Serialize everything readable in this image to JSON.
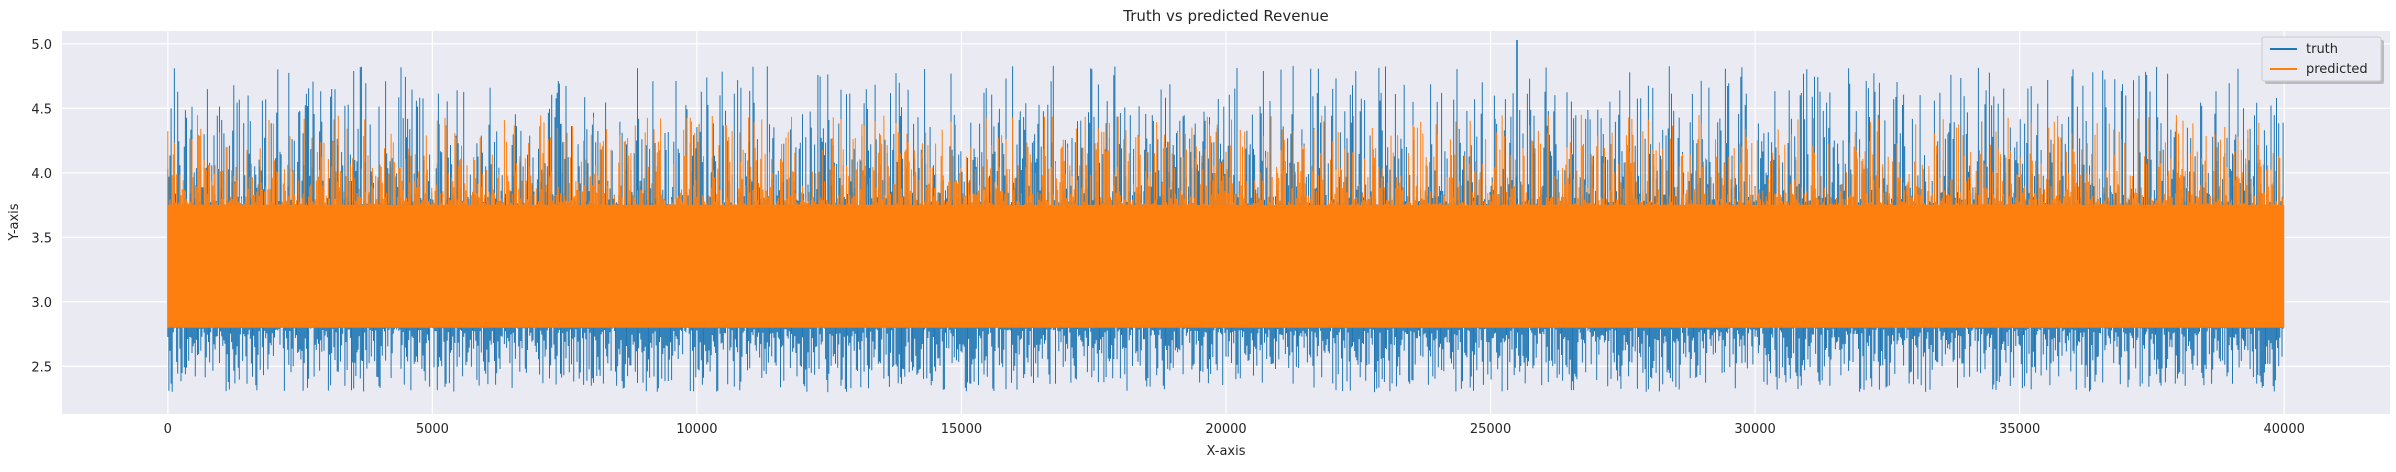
{
  "chart_data": {
    "type": "line",
    "title": "Truth vs predicted Revenue",
    "xlabel": "X-axis",
    "ylabel": "Y-axis",
    "xlim": [
      -2000,
      42000
    ],
    "ylim": [
      2.13,
      5.1
    ],
    "x_ticks": [
      0,
      5000,
      10000,
      15000,
      20000,
      25000,
      30000,
      35000,
      40000
    ],
    "x_tick_labels": [
      "0",
      "5000",
      "10000",
      "15000",
      "20000",
      "25000",
      "30000",
      "35000",
      "40000"
    ],
    "y_ticks": [
      2.5,
      3.0,
      3.5,
      4.0,
      4.5,
      5.0
    ],
    "y_tick_labels": [
      "2.5",
      "3.0",
      "3.5",
      "4.0",
      "4.5",
      "5.0"
    ],
    "grid": true,
    "legend_position": "top-right",
    "x_range": [
      0,
      40000
    ],
    "series": [
      {
        "name": "truth",
        "color": "#1f77b4",
        "dense_band": [
          2.8,
          3.75
        ],
        "noise_band": [
          2.3,
          4.83
        ],
        "max_point": {
          "x": 25500,
          "y": 5.03
        }
      },
      {
        "name": "predicted",
        "color": "#ff7f0e",
        "dense_band": [
          2.8,
          3.75
        ],
        "noise_band": [
          2.8,
          4.45
        ]
      }
    ]
  }
}
